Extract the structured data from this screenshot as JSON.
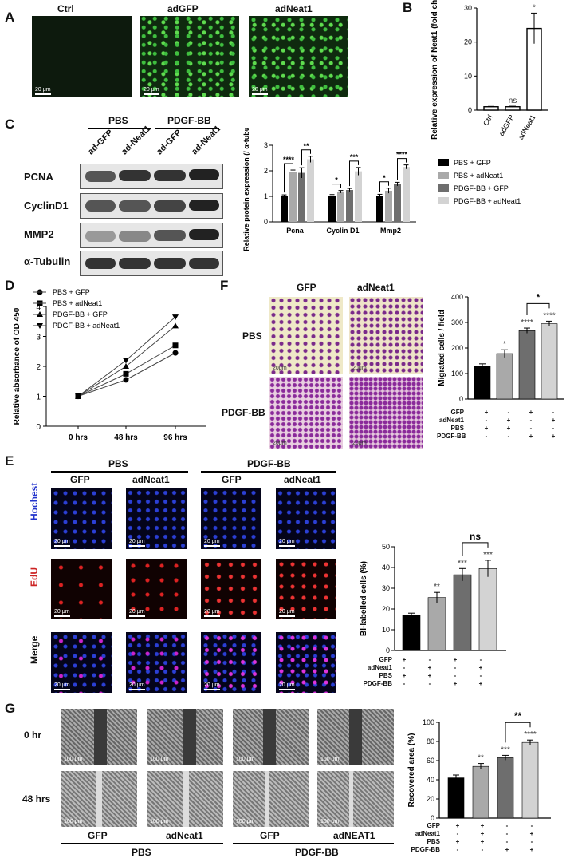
{
  "panelA": {
    "letter": "A",
    "images": [
      {
        "label": "Ctrl",
        "scale": "20 μm"
      },
      {
        "label": "adGFP",
        "scale": "20 μm"
      },
      {
        "label": "adNeat1",
        "scale": "20 μm"
      }
    ]
  },
  "panelB": {
    "letter": "B",
    "chart_data": {
      "type": "bar",
      "categories": [
        "Ctrl",
        "adGFP",
        "adNeat1"
      ],
      "values": [
        1,
        1,
        24
      ],
      "errors": [
        0.1,
        0.15,
        4.5
      ],
      "significance": [
        "",
        "ns",
        "*"
      ],
      "ylabel": "Relative expression of Neat1 (fold change)",
      "ylim": [
        0,
        30
      ],
      "yticks": [
        0,
        10,
        20,
        30
      ]
    }
  },
  "panelC": {
    "letter": "C",
    "groups": [
      "PBS",
      "PDGF-BB"
    ],
    "lanes": [
      "ad-GFP",
      "ad-Neat1",
      "ad-GFP",
      "ad-Neat1"
    ],
    "proteins": [
      "PCNA",
      "CyclinD1",
      "MMP2",
      "α-Tubulin"
    ],
    "chart_data": {
      "type": "bar",
      "categories": [
        "Pcna",
        "Cyclin D1",
        "Mmp2"
      ],
      "series": [
        {
          "name": "PBS + GFP",
          "values": [
            1.0,
            1.0,
            1.0
          ],
          "errors": [
            0.06,
            0.07,
            0.08
          ],
          "color": "#000000"
        },
        {
          "name": "PBS + adNeat1",
          "values": [
            1.95,
            1.18,
            1.22
          ],
          "errors": [
            0.08,
            0.05,
            0.1
          ],
          "color": "#a9a9a9"
        },
        {
          "name": "PDGF-BB + GFP",
          "values": [
            1.92,
            1.25,
            1.48
          ],
          "errors": [
            0.2,
            0.06,
            0.07
          ],
          "color": "#6e6e6e"
        },
        {
          "name": "PDGF-BB + adNeat1",
          "values": [
            2.45,
            1.98,
            2.15
          ],
          "errors": [
            0.12,
            0.15,
            0.08
          ],
          "color": "#d3d3d3"
        }
      ],
      "significance": [
        [
          "****",
          "**"
        ],
        [
          "*",
          "***"
        ],
        [
          "*",
          "****"
        ]
      ],
      "ylabel": "Relative protein expression (/ α-tubulin)",
      "ylim": [
        0,
        3
      ],
      "yticks": [
        0,
        1,
        2,
        3
      ]
    }
  },
  "panelD": {
    "letter": "D",
    "chart_data": {
      "type": "line",
      "x": [
        "0 hrs",
        "48 hrs",
        "96 hrs"
      ],
      "series": [
        {
          "name": "PBS + GFP",
          "marker": "circle",
          "values": [
            1.0,
            1.55,
            2.45
          ]
        },
        {
          "name": "PBS + adNeat1",
          "marker": "square",
          "values": [
            1.0,
            1.75,
            2.7
          ]
        },
        {
          "name": "PDGF-BB + GFP",
          "marker": "triangle-up",
          "values": [
            1.0,
            2.0,
            3.35
          ]
        },
        {
          "name": "PDGF-BB + adNeat1",
          "marker": "triangle-down",
          "values": [
            1.0,
            2.2,
            3.65
          ]
        }
      ],
      "ylabel": "Relative absorbance of OD 450",
      "ylim": [
        0,
        4
      ],
      "yticks": [
        0,
        1,
        2,
        3,
        4
      ]
    }
  },
  "panelF": {
    "letter": "F",
    "col_labels": [
      "GFP",
      "adNeat1"
    ],
    "row_labels": [
      "PBS",
      "PDGF-BB"
    ],
    "scale": "20μm",
    "chart_data": {
      "type": "bar",
      "categories": [
        "PBS + GFP",
        "PBS + adNeat1",
        "PDGF-BB + GFP",
        "PDGF-BB + adNeat1"
      ],
      "values": [
        130,
        178,
        268,
        295
      ],
      "errors": [
        8,
        15,
        10,
        10
      ],
      "colors": [
        "#000000",
        "#a9a9a9",
        "#6e6e6e",
        "#d3d3d3"
      ],
      "significance": [
        "",
        "*",
        "****",
        "****"
      ],
      "bracket": "*",
      "ylabel": "Migrated cells / field",
      "ylim": [
        0,
        400
      ],
      "yticks": [
        0,
        100,
        200,
        300,
        400
      ]
    },
    "matrix": {
      "rows": [
        "GFP",
        "adNeat1",
        "PBS",
        "PDGF-BB"
      ],
      "values": [
        [
          "+",
          "-",
          "+",
          "-"
        ],
        [
          "-",
          "+",
          "-",
          "+"
        ],
        [
          "+",
          "+",
          "-",
          "-"
        ],
        [
          "-",
          "-",
          "+",
          "+"
        ]
      ]
    }
  },
  "panelE": {
    "letter": "E",
    "groups": [
      "PBS",
      "PDGF-BB"
    ],
    "col_labels": [
      "GFP",
      "adNeat1",
      "GFP",
      "adNeat1"
    ],
    "row_labels": [
      "Hochest",
      "EdU",
      "Merge"
    ],
    "scale": "20 μm",
    "chart_data": {
      "type": "bar",
      "categories": [
        "PBS + GFP",
        "PBS + adNeat1",
        "PDGF-BB + GFP",
        "PDGF-BB + adNeat1"
      ],
      "values": [
        17,
        25.5,
        36.5,
        39.5
      ],
      "errors": [
        1,
        2.5,
        3,
        4
      ],
      "colors": [
        "#000000",
        "#a9a9a9",
        "#6e6e6e",
        "#d3d3d3"
      ],
      "significance": [
        "",
        "**",
        "***",
        "***"
      ],
      "bracket": "ns",
      "ylabel": "BI-labelled cells (%)",
      "ylim": [
        0,
        50
      ],
      "yticks": [
        0,
        10,
        20,
        30,
        40,
        50
      ]
    },
    "matrix": {
      "rows": [
        "GFP",
        "adNeat1",
        "PBS",
        "PDGF-BB"
      ],
      "values": [
        [
          "+",
          "-",
          "+",
          "-"
        ],
        [
          "-",
          "+",
          "-",
          "+"
        ],
        [
          "+",
          "+",
          "-",
          "-"
        ],
        [
          "-",
          "-",
          "+",
          "+"
        ]
      ]
    }
  },
  "panelG": {
    "letter": "G",
    "row_labels": [
      "0 hr",
      "48 hrs"
    ],
    "col_labels": [
      "GFP",
      "adNeat1",
      "GFP",
      "adNEAT1"
    ],
    "groups": [
      "PBS",
      "PDGF-BB"
    ],
    "scale": "100 μm",
    "chart_data": {
      "type": "bar",
      "categories": [
        "PBS + GFP",
        "PBS + adNeat1",
        "PDGF-BB + GFP",
        "PDGF-BB + adNeat1"
      ],
      "values": [
        42,
        54,
        63,
        79
      ],
      "errors": [
        3,
        3,
        2.5,
        2.5
      ],
      "colors": [
        "#000000",
        "#a9a9a9",
        "#6e6e6e",
        "#d3d3d3"
      ],
      "significance": [
        "",
        "**",
        "***",
        "****"
      ],
      "bracket": "**",
      "ylabel": "Recovered area (%)",
      "ylim": [
        0,
        100
      ],
      "yticks": [
        0,
        20,
        40,
        60,
        80,
        100
      ]
    },
    "matrix": {
      "rows": [
        "GFP",
        "adNeat1",
        "PBS",
        "PDGF-BB"
      ],
      "values": [
        [
          "+",
          "+",
          "-",
          "-"
        ],
        [
          "-",
          "+",
          "-",
          "+"
        ],
        [
          "+",
          "+",
          "-",
          "-"
        ],
        [
          "-",
          "-",
          "+",
          "+"
        ]
      ]
    }
  }
}
